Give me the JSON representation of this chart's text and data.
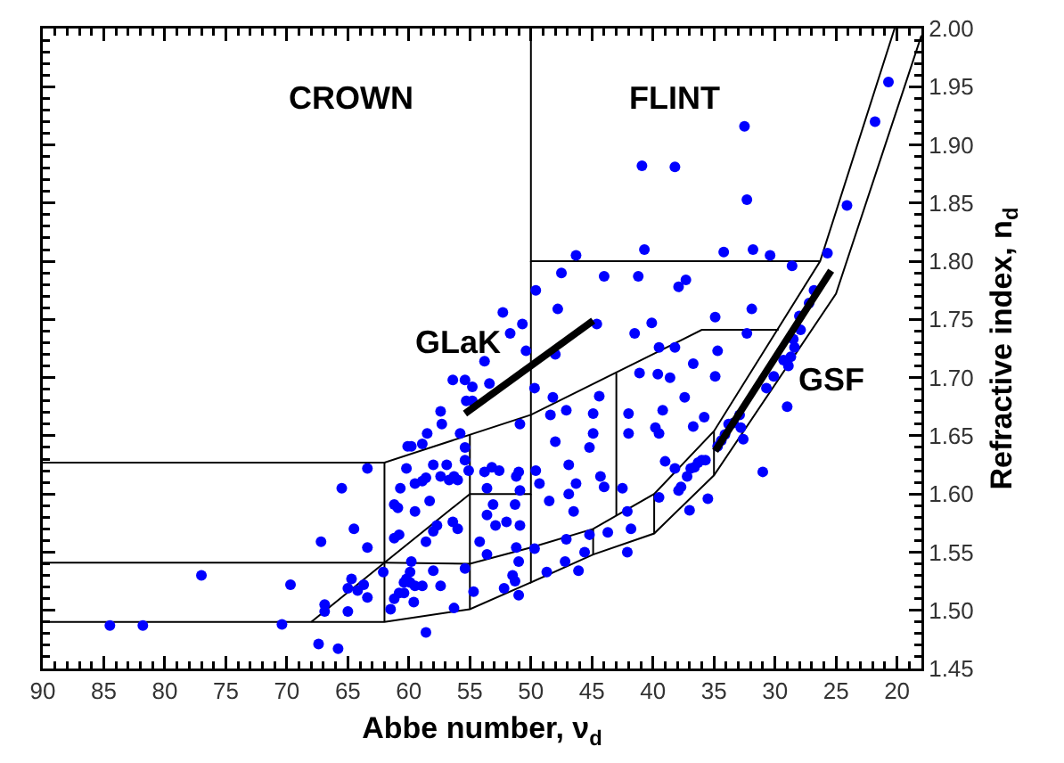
{
  "chart_data": {
    "type": "scatter",
    "xlabel": "Abbe number, ν$_{d}$",
    "ylabel": "Refractive index, n$_{d}$",
    "xlim": [
      90,
      18
    ],
    "xticks": [
      90,
      85,
      80,
      75,
      70,
      65,
      60,
      55,
      50,
      45,
      40,
      35,
      30,
      25,
      20
    ],
    "ylim": [
      1.45,
      2.0
    ],
    "yticks": [
      1.45,
      {
        "value": 1.5,
        "label": "1.50"
      },
      1.55,
      {
        "value": 1.6,
        "label": "1.60"
      },
      1.65,
      {
        "value": 1.7,
        "label": "1.70"
      },
      1.75,
      {
        "value": 1.8,
        "label": "1.80"
      },
      1.85,
      {
        "value": 1.9,
        "label": "1.90"
      },
      1.95,
      {
        "value": 2.0,
        "label": "2.00"
      }
    ],
    "grid": false,
    "line_style": "solid",
    "annotations": [
      "CROWN",
      "FLINT",
      {
        "text": "GLaK",
        "x": 55.4,
        "y": 1.669
      },
      {
        "text": "GSF",
        "x": 30.4,
        "y": 1.717
      }
    ],
    "series": [
      {
        "type": "line",
        "color": "#000000",
        "x": [
          90,
          62,
          50,
          36,
          29.7
        ],
        "values": [
          1.627,
          1.627,
          1.668,
          1.741,
          1.741
        ]
      },
      {
        "type": "line",
        "color": "#000000",
        "x": [
          90,
          62,
          55,
          50,
          44.9,
          39.9,
          35,
          26.3,
          20.2
        ],
        "values": [
          1.541,
          1.541,
          1.54,
          1.554,
          1.57,
          1.6,
          1.654,
          1.8,
          2.0
        ]
      },
      {
        "type": "line",
        "color": "#000000",
        "x": [
          90,
          62,
          55,
          50
        ],
        "values": [
          1.49,
          1.49,
          1.501,
          1.524
        ]
      },
      {
        "type": "line",
        "color": "#000000",
        "x": [
          50,
          50,
          44.9,
          39.9,
          35,
          25,
          18
        ],
        "values": [
          1.6,
          1.524,
          1.548,
          1.566,
          1.616,
          1.772,
          1.994
        ]
      },
      {
        "type": "line",
        "color": "#000000",
        "x": [
          62,
          62
        ],
        "values": [
          1.49,
          1.627
        ]
      },
      {
        "type": "line",
        "color": "#000000",
        "x": [
          50,
          50,
          55,
          62,
          68
        ],
        "values": [
          1.8,
          1.6,
          1.6,
          1.541,
          1.49
        ]
      },
      {
        "type": "line",
        "color": "#000000",
        "x": [
          55,
          55
        ],
        "values": [
          1.651,
          1.501
        ]
      },
      {
        "type": "line",
        "color": "#000000",
        "x": [
          50,
          50,
          26.3
        ],
        "values": [
          2.0,
          1.8,
          1.8
        ]
      },
      {
        "type": "line",
        "color": "#000000",
        "x": [
          44.9,
          44.9
        ],
        "values": [
          1.548,
          1.57
        ]
      },
      {
        "type": "line",
        "color": "#000000",
        "x": [
          43,
          43
        ],
        "values": [
          1.581,
          1.704
        ]
      },
      {
        "type": "line",
        "color": "#000000",
        "x": [
          39.9,
          39.9
        ],
        "values": [
          1.566,
          1.6
        ]
      },
      {
        "type": "line",
        "color": "#000000",
        "x": [
          35,
          35
        ],
        "values": [
          1.616,
          1.654
        ]
      },
      {
        "marker": "circle",
        "color": "#0000ff",
        "x": [
          84.5,
          81.8,
          77.0,
          70.4,
          69.7,
          67.2,
          66.9,
          66.9,
          67.4,
          65.8,
          65.0,
          65.5,
          64.5,
          63.4,
          63.4,
          63.4,
          64.7,
          65.0,
          64.2,
          63.7,
          62.1,
          61.5,
          61.2,
          61.2,
          60.9,
          61.2,
          60.8,
          60.7,
          60.2,
          59.8,
          60.1,
          59.8,
          58.9,
          58.5,
          57.4,
          57.3,
          55.8,
          56.4,
          55.4,
          54.8,
          55.3,
          54.8,
          53.8,
          53.4,
          55.4,
          59.5,
          58.9,
          58.6,
          58.0,
          57.4,
          56.9,
          56.7,
          56.3,
          56.0,
          55.1,
          55.4,
          58.3,
          59.5,
          57.7,
          58.0,
          56.4,
          56.0,
          58.6,
          60.2,
          60.4,
          59.9,
          59.5,
          58.9,
          60.4,
          59.6,
          60.8,
          59.9,
          58.0,
          57.4,
          58.6,
          56.3,
          55.4,
          54.7,
          54.2,
          53.6,
          53.6,
          53.1,
          52.9,
          52.0,
          51.3,
          51.2,
          53.6,
          53.8,
          53.2,
          52.6,
          51.2,
          50.9,
          51.5,
          51.3,
          52.2,
          51.0,
          49.7,
          48.2,
          48.4,
          47.1,
          44.9,
          44.4,
          44.9,
          45.2,
          48.0,
          46.9,
          46.3,
          46.9,
          46.5,
          48.5,
          49.6,
          49.3,
          51.0,
          50.9,
          50.9,
          49.7,
          51.0,
          48.7,
          47.2,
          47.1,
          46.1,
          45.6,
          45.2,
          44.3,
          44.0,
          43.7,
          42.5,
          42.1,
          42.1,
          41.8,
          42.0,
          42.0,
          41.1,
          39.6,
          38.6,
          39.8,
          39.5,
          39.2,
          39.0,
          39.5,
          38.2,
          37.9,
          37.4,
          36.7,
          36.7,
          35.8,
          34.9,
          37.0,
          37.7,
          37.2,
          36.9,
          36.6,
          36.3,
          36.0,
          35.7,
          35.5,
          34.7,
          34.4,
          34.1,
          33.8,
          33.4,
          32.9,
          32.8,
          32.6,
          31.0,
          30.7,
          30.1,
          29.3,
          29.0,
          50.7,
          50.4,
          49.6,
          47.8,
          47.5,
          46.3,
          48.0,
          44.6,
          44.0,
          41.5,
          41.2,
          40.9,
          40.7,
          40.1,
          39.5,
          38.2,
          37.9,
          37.3,
          38.2,
          34.9,
          34.7,
          34.2,
          32.5,
          32.3,
          31.8,
          31.9,
          32.3,
          30.4,
          28.6,
          28.0,
          27.9,
          26.8,
          27.2,
          25.7,
          24.1,
          21.8,
          20.7,
          28.5,
          28.4,
          28.7,
          28.9,
          52.3,
          51.7
        ],
        "values": [
          1.487,
          1.487,
          1.53,
          1.488,
          1.522,
          1.559,
          1.505,
          1.499,
          1.471,
          1.467,
          1.499,
          1.605,
          1.57,
          1.554,
          1.511,
          1.622,
          1.527,
          1.519,
          1.517,
          1.522,
          1.533,
          1.501,
          1.51,
          1.591,
          1.588,
          1.562,
          1.565,
          1.605,
          1.622,
          1.542,
          1.641,
          1.641,
          1.643,
          1.652,
          1.671,
          1.66,
          1.652,
          1.698,
          1.698,
          1.692,
          1.68,
          1.68,
          1.714,
          1.695,
          1.64,
          1.609,
          1.611,
          1.614,
          1.625,
          1.615,
          1.625,
          1.612,
          1.615,
          1.612,
          1.62,
          1.629,
          1.594,
          1.585,
          1.573,
          1.568,
          1.576,
          1.57,
          1.559,
          1.527,
          1.524,
          1.524,
          1.521,
          1.521,
          1.515,
          1.507,
          1.515,
          1.533,
          1.534,
          1.521,
          1.481,
          1.502,
          1.536,
          1.516,
          1.559,
          1.548,
          1.582,
          1.591,
          1.573,
          1.576,
          1.591,
          1.554,
          1.605,
          1.619,
          1.623,
          1.62,
          1.615,
          1.66,
          1.53,
          1.525,
          1.519,
          1.513,
          1.691,
          1.683,
          1.668,
          1.672,
          1.669,
          1.684,
          1.652,
          1.64,
          1.645,
          1.625,
          1.609,
          1.6,
          1.585,
          1.594,
          1.62,
          1.609,
          1.619,
          1.603,
          1.573,
          1.553,
          1.542,
          1.533,
          1.542,
          1.561,
          1.534,
          1.55,
          1.565,
          1.615,
          1.606,
          1.567,
          1.605,
          1.55,
          1.585,
          1.57,
          1.669,
          1.652,
          1.704,
          1.703,
          1.7,
          1.657,
          1.652,
          1.672,
          1.628,
          1.597,
          1.622,
          1.603,
          1.683,
          1.658,
          1.712,
          1.666,
          1.701,
          1.586,
          1.606,
          1.615,
          1.622,
          1.623,
          1.627,
          1.629,
          1.629,
          1.596,
          1.641,
          1.646,
          1.651,
          1.66,
          1.661,
          1.668,
          1.657,
          1.647,
          1.619,
          1.691,
          1.701,
          1.715,
          1.675,
          1.746,
          1.723,
          1.775,
          1.759,
          1.79,
          1.805,
          1.72,
          1.746,
          1.787,
          1.738,
          1.787,
          1.882,
          1.81,
          1.747,
          1.726,
          1.881,
          1.778,
          1.784,
          1.726,
          1.752,
          1.723,
          1.808,
          1.916,
          1.853,
          1.81,
          1.759,
          1.738,
          1.805,
          1.796,
          1.753,
          1.741,
          1.775,
          1.764,
          1.807,
          1.848,
          1.92,
          1.954,
          1.733,
          1.726,
          1.718,
          1.71,
          1.756,
          1.738
        ]
      },
      {
        "type": "line",
        "color": "#000000",
        "x": [
          55.4,
          44.9
        ],
        "values": [
          1.669,
          1.749
        ]
      },
      {
        "type": "line",
        "color": "#000000",
        "x": [
          34.9,
          25.4
        ],
        "values": [
          1.637,
          1.792
        ]
      }
    ]
  }
}
